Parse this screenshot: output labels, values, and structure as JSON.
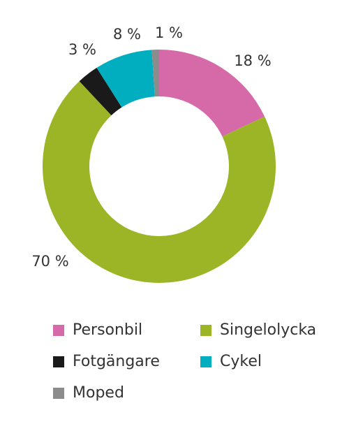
{
  "chart_data": {
    "type": "donut",
    "categories": [
      "Personbil",
      "Singelolycka",
      "Fotgängare",
      "Cykel",
      "Moped"
    ],
    "values": [
      18,
      70,
      3,
      8,
      1
    ],
    "value_labels": [
      "18 %",
      "70 %",
      "3 %",
      "8 %",
      "1 %"
    ],
    "colors": [
      "#d66aa8",
      "#9cb526",
      "#1a1a1a",
      "#00aec0",
      "#8c8c8c"
    ],
    "legend": "bottom"
  }
}
